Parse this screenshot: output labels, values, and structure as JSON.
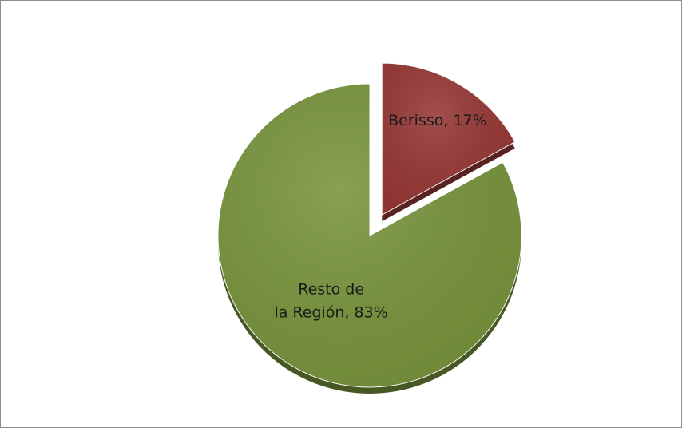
{
  "chart_data": {
    "type": "pie",
    "values": [
      17,
      83
    ],
    "value_labels": [
      "Berisso, 17%",
      "Resto de la Región, 83%"
    ],
    "colors": [
      "#953735",
      "#77933c"
    ],
    "explode": [
      true,
      false
    ]
  }
}
